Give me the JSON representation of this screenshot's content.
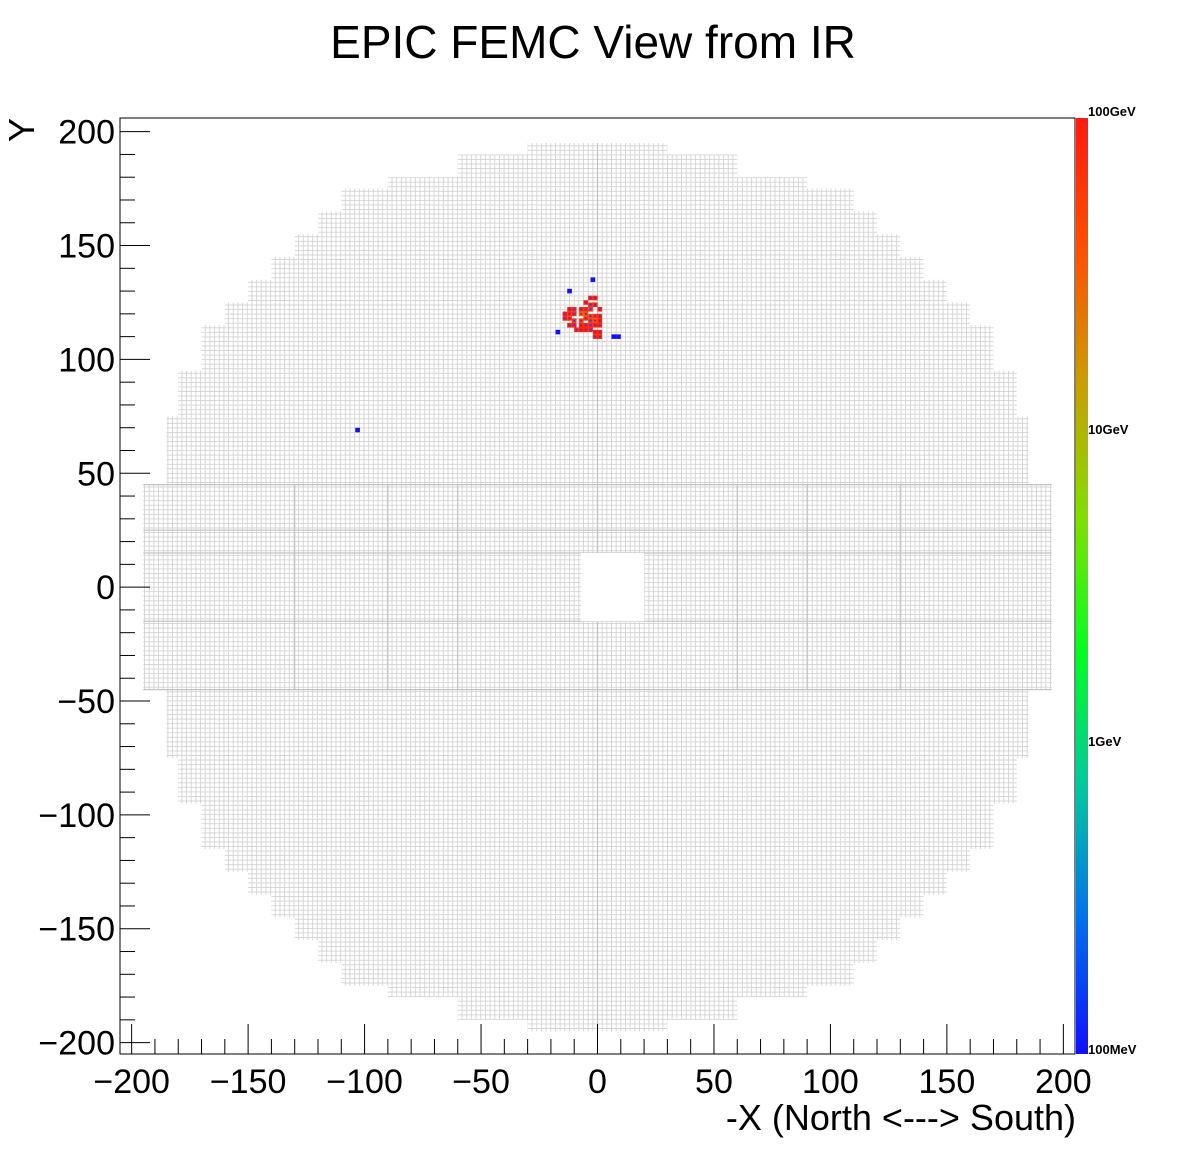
{
  "chart_data": {
    "type": "heatmap",
    "title": "EPIC FEMC View from IR",
    "xlabel": "-X (North <---> South)",
    "ylabel": "Y",
    "xlim": [
      -205,
      205
    ],
    "ylim": [
      -205,
      206
    ],
    "x_ticks": [
      -200,
      -150,
      -100,
      -50,
      0,
      50,
      100,
      150,
      200
    ],
    "y_ticks": [
      -200,
      -150,
      -100,
      -50,
      0,
      50,
      100,
      150,
      200
    ],
    "x_tick_labels": [
      "−200",
      "−150",
      "−100",
      "−50",
      "0",
      "50",
      "100",
      "150",
      "200"
    ],
    "y_tick_labels": [
      "−200",
      "−150",
      "−100",
      "−50",
      "0",
      "50",
      "100",
      "150",
      "200"
    ],
    "color_scale": {
      "scale": "log",
      "min_gev": 0.1,
      "max_gev": 100,
      "labels": [
        {
          "text": "100GeV",
          "value": 100
        },
        {
          "text": "10GeV",
          "value": 10
        },
        {
          "text": "1GeV",
          "value": 1
        },
        {
          "text": "100MeV",
          "value": 0.1
        }
      ],
      "colors": [
        "#1010ff",
        "#0070ee",
        "#00c8a0",
        "#00ff20",
        "#80e000",
        "#c8a000",
        "#ff5000",
        "#ff1a10"
      ]
    },
    "grid_color": "#d4d4d4",
    "detector_outline_rows": [
      {
        "y_min": -195,
        "y_max": 195,
        "x_half": 30
      },
      {
        "y_min": -190,
        "y_max": 190,
        "x_half": 60
      },
      {
        "y_min": -180,
        "y_max": 180,
        "x_half": 90
      },
      {
        "y_min": -175,
        "y_max": 175,
        "x_half": 110
      },
      {
        "y_min": -165,
        "y_max": 165,
        "x_half": 120
      },
      {
        "y_min": -155,
        "y_max": 155,
        "x_half": 130
      },
      {
        "y_min": -145,
        "y_max": 145,
        "x_half": 140
      },
      {
        "y_min": -135,
        "y_max": 135,
        "x_half": 150
      },
      {
        "y_min": -125,
        "y_max": 125,
        "x_half": 160
      },
      {
        "y_min": -115,
        "y_max": 115,
        "x_half": 170
      },
      {
        "y_min": -95,
        "y_max": 95,
        "x_half": 180
      },
      {
        "y_min": -75,
        "y_max": 75,
        "x_half": 185
      },
      {
        "y_min": -45,
        "y_max": 45,
        "x_half": 195
      }
    ],
    "beam_hole": {
      "x_min": -7,
      "x_max": 20,
      "y_min": -15,
      "y_max": 15
    },
    "hits": [
      {
        "x": -103,
        "y": 69,
        "e_gev": 0.1
      },
      {
        "x": -12,
        "y": 130,
        "e_gev": 0.1
      },
      {
        "x": -2,
        "y": 135,
        "e_gev": 0.1
      },
      {
        "x": -17,
        "y": 112,
        "e_gev": 0.1
      },
      {
        "x": 7,
        "y": 110,
        "e_gev": 0.1
      },
      {
        "x": 9,
        "y": 110,
        "e_gev": 0.1
      },
      {
        "x": -14,
        "y": 120,
        "e_gev": 90
      },
      {
        "x": -14,
        "y": 118,
        "e_gev": 90
      },
      {
        "x": -12,
        "y": 122,
        "e_gev": 90
      },
      {
        "x": -12,
        "y": 120,
        "e_gev": 80
      },
      {
        "x": -12,
        "y": 118,
        "e_gev": 80
      },
      {
        "x": -12,
        "y": 115,
        "e_gev": 90
      },
      {
        "x": -10,
        "y": 122,
        "e_gev": 80
      },
      {
        "x": -10,
        "y": 120,
        "e_gev": 70
      },
      {
        "x": -10,
        "y": 117,
        "e_gev": 60
      },
      {
        "x": -10,
        "y": 115,
        "e_gev": 90
      },
      {
        "x": -9,
        "y": 113,
        "e_gev": 90
      },
      {
        "x": -7,
        "y": 122,
        "e_gev": 80
      },
      {
        "x": -7,
        "y": 120,
        "e_gev": 30
      },
      {
        "x": -7,
        "y": 117,
        "e_gev": 50
      },
      {
        "x": -7,
        "y": 115,
        "e_gev": 80
      },
      {
        "x": -7,
        "y": 113,
        "e_gev": 90
      },
      {
        "x": -5,
        "y": 125,
        "e_gev": 90
      },
      {
        "x": -5,
        "y": 122,
        "e_gev": 70
      },
      {
        "x": -5,
        "y": 120,
        "e_gev": 40
      },
      {
        "x": -5,
        "y": 118,
        "e_gev": 60
      },
      {
        "x": -5,
        "y": 115,
        "e_gev": 80
      },
      {
        "x": -5,
        "y": 113,
        "e_gev": 90
      },
      {
        "x": -3,
        "y": 127,
        "e_gev": 90
      },
      {
        "x": -3,
        "y": 124,
        "e_gev": 80
      },
      {
        "x": -3,
        "y": 122,
        "e_gev": 60
      },
      {
        "x": -3,
        "y": 119,
        "e_gev": 50
      },
      {
        "x": -3,
        "y": 117,
        "e_gev": 70
      },
      {
        "x": -3,
        "y": 115,
        "e_gev": 80
      },
      {
        "x": -3,
        "y": 113,
        "e_gev": 90
      },
      {
        "x": -1,
        "y": 127,
        "e_gev": 90
      },
      {
        "x": -1,
        "y": 124,
        "e_gev": 90
      },
      {
        "x": -1,
        "y": 119,
        "e_gev": 60
      },
      {
        "x": -1,
        "y": 117,
        "e_gev": 40
      },
      {
        "x": -1,
        "y": 115,
        "e_gev": 80
      },
      {
        "x": -1,
        "y": 112,
        "e_gev": 90
      },
      {
        "x": -1,
        "y": 110,
        "e_gev": 90
      },
      {
        "x": 1,
        "y": 122,
        "e_gev": 90
      },
      {
        "x": 1,
        "y": 119,
        "e_gev": 80
      },
      {
        "x": 1,
        "y": 117,
        "e_gev": 90
      },
      {
        "x": 1,
        "y": 115,
        "e_gev": 80
      },
      {
        "x": 1,
        "y": 112,
        "e_gev": 90
      },
      {
        "x": 1,
        "y": 110,
        "e_gev": 90
      }
    ]
  }
}
